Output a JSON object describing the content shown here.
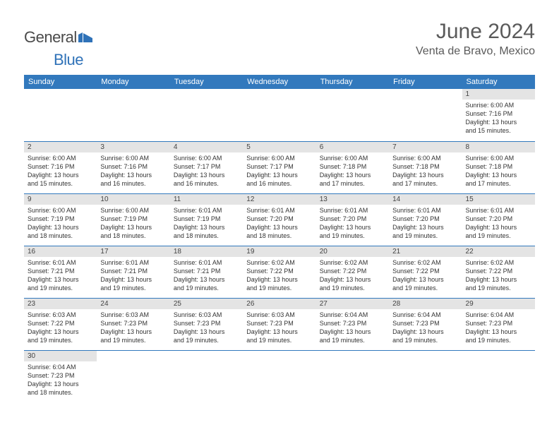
{
  "header": {
    "logo_general": "General",
    "logo_blue": "Blue",
    "month_title": "June 2024",
    "location": "Venta de Bravo, Mexico"
  },
  "colors": {
    "header_bg": "#3279bd",
    "header_text": "#ffffff",
    "daynum_bg": "#e4e4e4",
    "cell_border": "#3279bd",
    "title_color": "#5a5a5a",
    "logo_gray": "#4a4a4a",
    "logo_blue": "#2f72b8"
  },
  "weekdays": [
    "Sunday",
    "Monday",
    "Tuesday",
    "Wednesday",
    "Thursday",
    "Friday",
    "Saturday"
  ],
  "leading_blanks": 6,
  "days": [
    {
      "n": 1,
      "sunrise": "6:00 AM",
      "sunset": "7:16 PM",
      "dl_h": 13,
      "dl_m": 15
    },
    {
      "n": 2,
      "sunrise": "6:00 AM",
      "sunset": "7:16 PM",
      "dl_h": 13,
      "dl_m": 15
    },
    {
      "n": 3,
      "sunrise": "6:00 AM",
      "sunset": "7:16 PM",
      "dl_h": 13,
      "dl_m": 16
    },
    {
      "n": 4,
      "sunrise": "6:00 AM",
      "sunset": "7:17 PM",
      "dl_h": 13,
      "dl_m": 16
    },
    {
      "n": 5,
      "sunrise": "6:00 AM",
      "sunset": "7:17 PM",
      "dl_h": 13,
      "dl_m": 16
    },
    {
      "n": 6,
      "sunrise": "6:00 AM",
      "sunset": "7:18 PM",
      "dl_h": 13,
      "dl_m": 17
    },
    {
      "n": 7,
      "sunrise": "6:00 AM",
      "sunset": "7:18 PM",
      "dl_h": 13,
      "dl_m": 17
    },
    {
      "n": 8,
      "sunrise": "6:00 AM",
      "sunset": "7:18 PM",
      "dl_h": 13,
      "dl_m": 17
    },
    {
      "n": 9,
      "sunrise": "6:00 AM",
      "sunset": "7:19 PM",
      "dl_h": 13,
      "dl_m": 18
    },
    {
      "n": 10,
      "sunrise": "6:00 AM",
      "sunset": "7:19 PM",
      "dl_h": 13,
      "dl_m": 18
    },
    {
      "n": 11,
      "sunrise": "6:01 AM",
      "sunset": "7:19 PM",
      "dl_h": 13,
      "dl_m": 18
    },
    {
      "n": 12,
      "sunrise": "6:01 AM",
      "sunset": "7:20 PM",
      "dl_h": 13,
      "dl_m": 18
    },
    {
      "n": 13,
      "sunrise": "6:01 AM",
      "sunset": "7:20 PM",
      "dl_h": 13,
      "dl_m": 19
    },
    {
      "n": 14,
      "sunrise": "6:01 AM",
      "sunset": "7:20 PM",
      "dl_h": 13,
      "dl_m": 19
    },
    {
      "n": 15,
      "sunrise": "6:01 AM",
      "sunset": "7:20 PM",
      "dl_h": 13,
      "dl_m": 19
    },
    {
      "n": 16,
      "sunrise": "6:01 AM",
      "sunset": "7:21 PM",
      "dl_h": 13,
      "dl_m": 19
    },
    {
      "n": 17,
      "sunrise": "6:01 AM",
      "sunset": "7:21 PM",
      "dl_h": 13,
      "dl_m": 19
    },
    {
      "n": 18,
      "sunrise": "6:01 AM",
      "sunset": "7:21 PM",
      "dl_h": 13,
      "dl_m": 19
    },
    {
      "n": 19,
      "sunrise": "6:02 AM",
      "sunset": "7:22 PM",
      "dl_h": 13,
      "dl_m": 19
    },
    {
      "n": 20,
      "sunrise": "6:02 AM",
      "sunset": "7:22 PM",
      "dl_h": 13,
      "dl_m": 19
    },
    {
      "n": 21,
      "sunrise": "6:02 AM",
      "sunset": "7:22 PM",
      "dl_h": 13,
      "dl_m": 19
    },
    {
      "n": 22,
      "sunrise": "6:02 AM",
      "sunset": "7:22 PM",
      "dl_h": 13,
      "dl_m": 19
    },
    {
      "n": 23,
      "sunrise": "6:03 AM",
      "sunset": "7:22 PM",
      "dl_h": 13,
      "dl_m": 19
    },
    {
      "n": 24,
      "sunrise": "6:03 AM",
      "sunset": "7:23 PM",
      "dl_h": 13,
      "dl_m": 19
    },
    {
      "n": 25,
      "sunrise": "6:03 AM",
      "sunset": "7:23 PM",
      "dl_h": 13,
      "dl_m": 19
    },
    {
      "n": 26,
      "sunrise": "6:03 AM",
      "sunset": "7:23 PM",
      "dl_h": 13,
      "dl_m": 19
    },
    {
      "n": 27,
      "sunrise": "6:04 AM",
      "sunset": "7:23 PM",
      "dl_h": 13,
      "dl_m": 19
    },
    {
      "n": 28,
      "sunrise": "6:04 AM",
      "sunset": "7:23 PM",
      "dl_h": 13,
      "dl_m": 19
    },
    {
      "n": 29,
      "sunrise": "6:04 AM",
      "sunset": "7:23 PM",
      "dl_h": 13,
      "dl_m": 19
    },
    {
      "n": 30,
      "sunrise": "6:04 AM",
      "sunset": "7:23 PM",
      "dl_h": 13,
      "dl_m": 18
    }
  ],
  "labels": {
    "sunrise": "Sunrise:",
    "sunset": "Sunset:",
    "daylight_prefix": "Daylight:",
    "hours_word": "hours",
    "and_word": "and",
    "minutes_word": "minutes."
  }
}
